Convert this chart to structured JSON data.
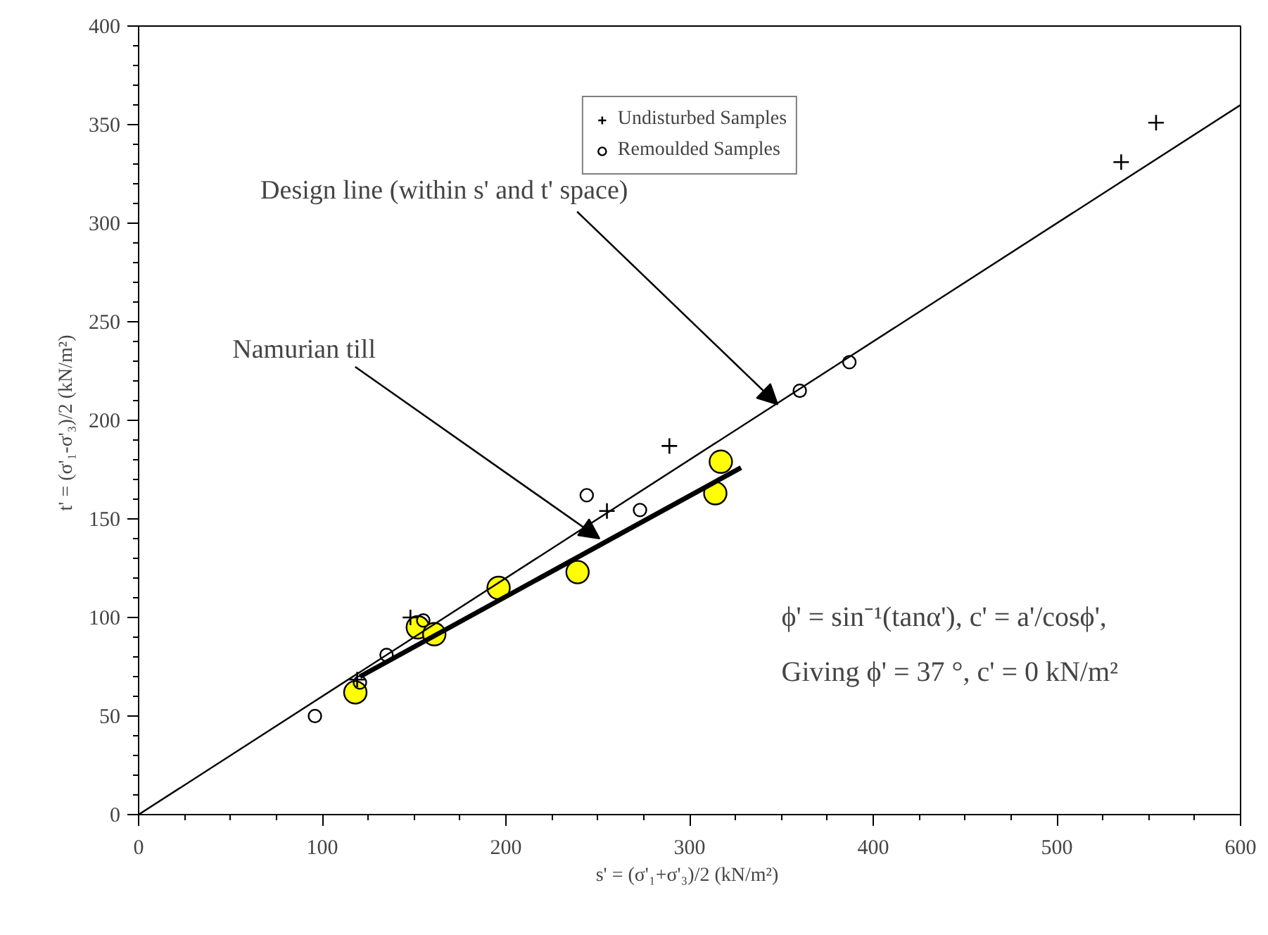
{
  "chart_data": {
    "type": "scatter",
    "xlabel": "s' =  (σ'₁+σ'₃)/2 (kN/m²)",
    "ylabel": "t' =  (σ'₁-σ'₃)/2 (kN/m²)",
    "xlim": [
      0,
      600
    ],
    "ylim": [
      0,
      400
    ],
    "xticks": [
      0,
      100,
      200,
      300,
      400,
      500,
      600
    ],
    "yticks": [
      0,
      50,
      100,
      150,
      200,
      250,
      300,
      350,
      400
    ],
    "grid": false,
    "legend": "top",
    "series": [
      {
        "color": "#ffff00",
        "marker": "circle",
        "x": [
          118,
          152,
          161,
          196,
          239,
          314,
          317
        ],
        "values": [
          62,
          95,
          91.5,
          115,
          123,
          163,
          179
        ]
      },
      {
        "name": "Undisturbed Samples",
        "color": "#000000",
        "marker": "cross",
        "x": [
          119,
          148,
          255,
          289,
          535,
          554
        ],
        "values": [
          68.5,
          100,
          154,
          187,
          331,
          351
        ]
      },
      {
        "name": "Remoulded Samples",
        "color": "#000000",
        "marker": "circle",
        "x": [
          96,
          120.5,
          135,
          155,
          244,
          273,
          360,
          387
        ],
        "values": [
          50,
          67,
          81,
          98.5,
          162,
          154.5,
          215,
          229.5
        ]
      },
      {
        "type": "line",
        "color": "#000000",
        "marker": "none",
        "x": [
          0,
          600
        ],
        "values": [
          0,
          360
        ]
      },
      {
        "type": "line",
        "color": "#000000",
        "marker": "none",
        "x": [
          120.5,
          328
        ],
        "values": [
          70,
          176
        ]
      }
    ],
    "annotations": [
      {
        "text": "Design line (within s' and t' space)",
        "x": 348,
        "y": 208
      },
      {
        "text": "Namurian till",
        "x": 251,
        "y": 140
      },
      "ϕ' = sin⁻¹(tanα'), c' = a'/cosϕ',",
      "Giving ϕ' = 37 °, c' = 0 kN/m²"
    ]
  }
}
